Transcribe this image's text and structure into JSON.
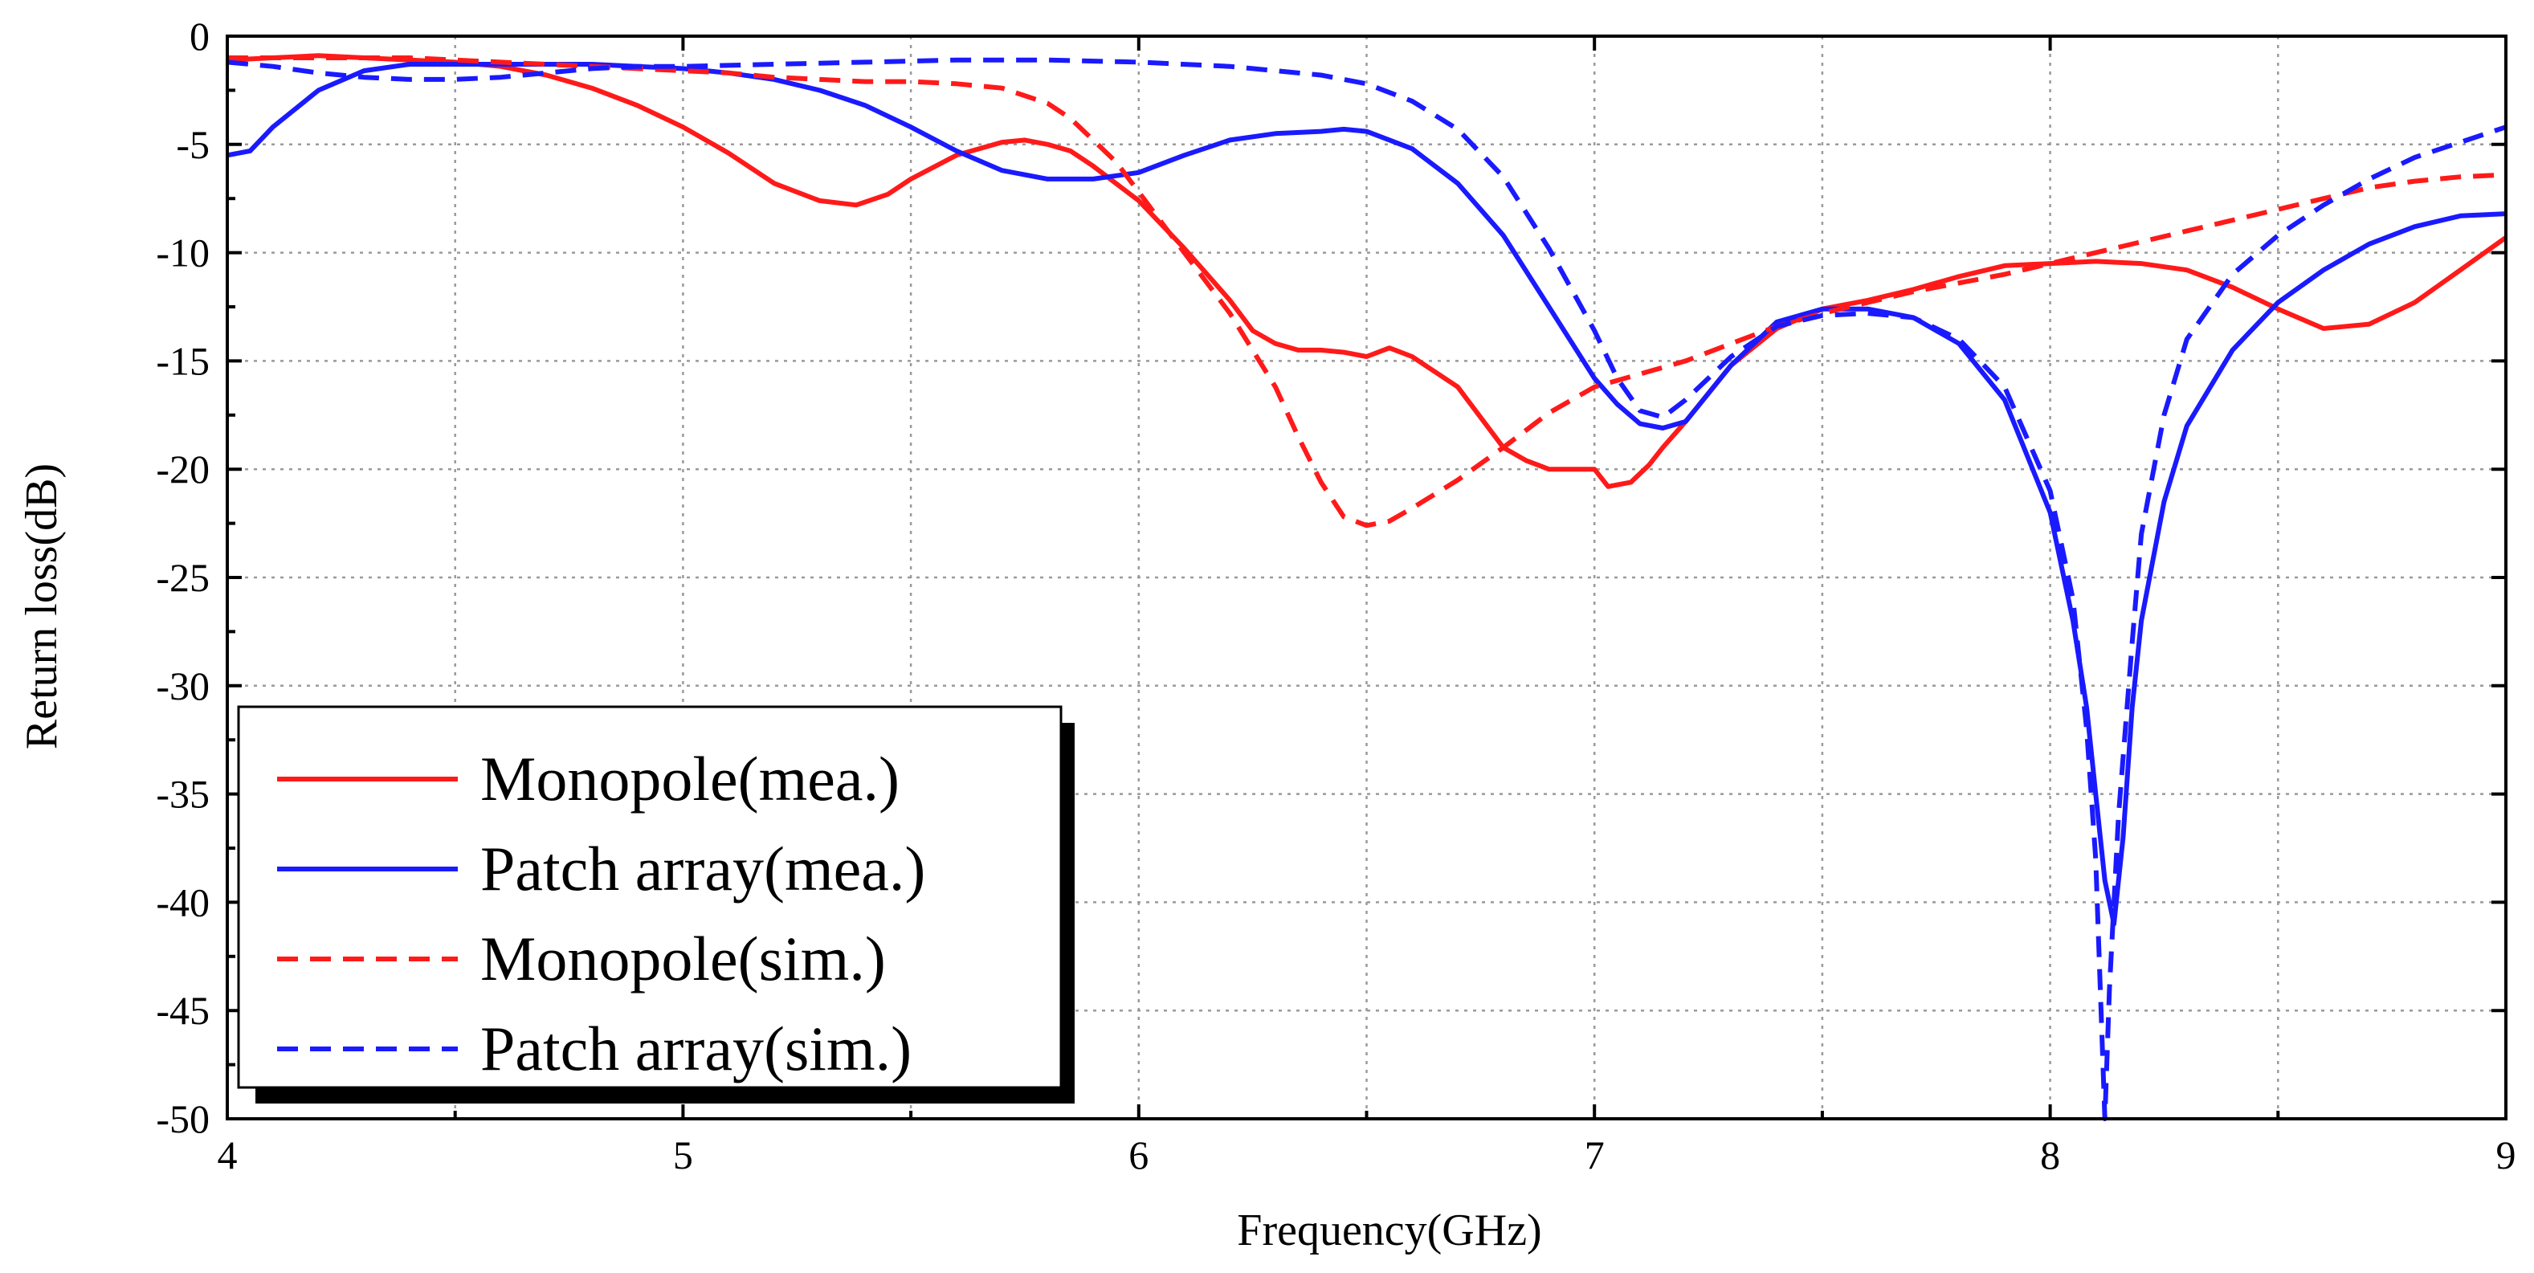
{
  "chart_data": {
    "type": "line",
    "title": "",
    "xlabel": "Frequency(GHz)",
    "ylabel": "Return loss(dB)",
    "xlim": [
      4,
      9
    ],
    "ylim": [
      -50,
      0
    ],
    "grid": true,
    "legend_position": "bottom-left",
    "x_ticks": [
      4,
      5,
      6,
      7,
      8,
      9
    ],
    "x_tick_labels": [
      "4",
      "5",
      "6",
      "7",
      "8",
      "9"
    ],
    "y_ticks": [
      0,
      -5,
      -10,
      -15,
      -20,
      -25,
      -30,
      -35,
      -40,
      -45,
      -50
    ],
    "y_tick_labels": [
      "0",
      "-5",
      "-10",
      "-15",
      "-20",
      "-25",
      "-30",
      "-35",
      "-40",
      "-45",
      "-50"
    ],
    "series": [
      {
        "name": "Monopole(mea.)",
        "color": "#ff1a1a",
        "dash": "solid",
        "x": [
          4.0,
          4.1,
          4.2,
          4.3,
          4.4,
          4.5,
          4.6,
          4.7,
          4.8,
          4.9,
          5.0,
          5.1,
          5.2,
          5.3,
          5.38,
          5.45,
          5.5,
          5.6,
          5.7,
          5.75,
          5.8,
          5.85,
          5.9,
          6.0,
          6.1,
          6.2,
          6.25,
          6.3,
          6.35,
          6.4,
          6.45,
          6.5,
          6.55,
          6.6,
          6.7,
          6.8,
          6.85,
          6.9,
          6.95,
          7.0,
          7.03,
          7.08,
          7.12,
          7.15,
          7.2,
          7.3,
          7.4,
          7.5,
          7.6,
          7.7,
          7.8,
          7.9,
          8.0,
          8.1,
          8.2,
          8.3,
          8.4,
          8.5,
          8.6,
          8.65,
          8.7,
          8.8,
          8.9,
          9.0
        ],
        "y": [
          -1.1,
          -1.0,
          -0.9,
          -1.0,
          -1.1,
          -1.2,
          -1.4,
          -1.8,
          -2.4,
          -3.2,
          -4.2,
          -5.4,
          -6.8,
          -7.6,
          -7.8,
          -7.3,
          -6.6,
          -5.5,
          -4.9,
          -4.8,
          -5.0,
          -5.3,
          -6.0,
          -7.6,
          -9.8,
          -12.2,
          -13.6,
          -14.2,
          -14.5,
          -14.5,
          -14.6,
          -14.8,
          -14.4,
          -14.8,
          -16.2,
          -19.0,
          -19.6,
          -20.0,
          -20.0,
          -20.0,
          -20.8,
          -20.6,
          -19.8,
          -19.0,
          -17.8,
          -15.2,
          -13.5,
          -12.6,
          -12.2,
          -11.7,
          -11.1,
          -10.6,
          -10.5,
          -10.4,
          -10.5,
          -10.8,
          -11.6,
          -12.6,
          -13.5,
          -13.4,
          -13.3,
          -12.3,
          -10.8,
          -9.3
        ]
      },
      {
        "name": "Patch array(mea.)",
        "color": "#1a1aff",
        "dash": "solid",
        "x": [
          4.0,
          4.05,
          4.1,
          4.2,
          4.3,
          4.4,
          4.5,
          4.6,
          4.7,
          4.8,
          4.9,
          5.0,
          5.1,
          5.2,
          5.3,
          5.4,
          5.5,
          5.6,
          5.7,
          5.8,
          5.9,
          6.0,
          6.1,
          6.2,
          6.3,
          6.4,
          6.45,
          6.5,
          6.6,
          6.7,
          6.8,
          6.9,
          7.0,
          7.05,
          7.1,
          7.15,
          7.2,
          7.3,
          7.4,
          7.5,
          7.6,
          7.7,
          7.8,
          7.9,
          8.0,
          8.05,
          8.08,
          8.1,
          8.12,
          8.14,
          8.16,
          8.18,
          8.2,
          8.25,
          8.3,
          8.4,
          8.5,
          8.6,
          8.7,
          8.8,
          8.9,
          9.0
        ],
        "y": [
          -5.5,
          -5.3,
          -4.2,
          -2.5,
          -1.6,
          -1.3,
          -1.3,
          -1.3,
          -1.3,
          -1.3,
          -1.4,
          -1.5,
          -1.7,
          -2.0,
          -2.5,
          -3.2,
          -4.2,
          -5.3,
          -6.2,
          -6.6,
          -6.6,
          -6.3,
          -5.5,
          -4.8,
          -4.5,
          -4.4,
          -4.3,
          -4.4,
          -5.2,
          -6.8,
          -9.2,
          -12.5,
          -15.8,
          -17.0,
          -17.9,
          -18.1,
          -17.8,
          -15.2,
          -13.2,
          -12.6,
          -12.6,
          -13.0,
          -14.2,
          -16.8,
          -22.0,
          -27.0,
          -31.0,
          -35.0,
          -39.0,
          -41.0,
          -37.0,
          -31.0,
          -27.0,
          -21.5,
          -18.0,
          -14.5,
          -12.3,
          -10.8,
          -9.6,
          -8.8,
          -8.3,
          -8.2
        ]
      },
      {
        "name": "Monopole(sim.)",
        "color": "#ff1a1a",
        "dash": "dashed",
        "x": [
          4.0,
          4.1,
          4.2,
          4.3,
          4.4,
          4.5,
          4.6,
          4.7,
          4.8,
          4.9,
          5.0,
          5.1,
          5.2,
          5.3,
          5.4,
          5.5,
          5.6,
          5.7,
          5.8,
          5.85,
          5.9,
          5.95,
          6.0,
          6.1,
          6.2,
          6.3,
          6.35,
          6.4,
          6.45,
          6.5,
          6.55,
          6.6,
          6.7,
          6.8,
          6.9,
          7.0,
          7.1,
          7.2,
          7.3,
          7.4,
          7.5,
          7.6,
          7.7,
          7.8,
          7.9,
          8.0,
          8.1,
          8.2,
          8.3,
          8.4,
          8.5,
          8.6,
          8.7,
          8.8,
          8.9,
          9.0
        ],
        "y": [
          -1.0,
          -1.0,
          -1.0,
          -1.0,
          -1.0,
          -1.1,
          -1.2,
          -1.3,
          -1.4,
          -1.5,
          -1.6,
          -1.7,
          -1.9,
          -2.0,
          -2.1,
          -2.1,
          -2.2,
          -2.4,
          -3.1,
          -3.8,
          -4.8,
          -5.8,
          -7.2,
          -10.0,
          -12.8,
          -16.2,
          -18.5,
          -20.6,
          -22.2,
          -22.6,
          -22.4,
          -21.8,
          -20.5,
          -19.0,
          -17.4,
          -16.2,
          -15.6,
          -15.0,
          -14.2,
          -13.4,
          -12.8,
          -12.3,
          -11.8,
          -11.4,
          -11.0,
          -10.5,
          -10.0,
          -9.5,
          -9.0,
          -8.5,
          -8.0,
          -7.5,
          -7.0,
          -6.7,
          -6.5,
          -6.4
        ]
      },
      {
        "name": "Patch array(sim.)",
        "color": "#1a1aff",
        "dash": "dashed",
        "x": [
          4.0,
          4.1,
          4.2,
          4.3,
          4.4,
          4.5,
          4.6,
          4.7,
          4.8,
          4.9,
          5.0,
          5.2,
          5.4,
          5.6,
          5.8,
          6.0,
          6.2,
          6.4,
          6.5,
          6.6,
          6.7,
          6.8,
          6.9,
          7.0,
          7.05,
          7.1,
          7.15,
          7.2,
          7.3,
          7.4,
          7.5,
          7.6,
          7.7,
          7.8,
          7.9,
          8.0,
          8.05,
          8.08,
          8.1,
          8.11,
          8.12,
          8.13,
          8.15,
          8.18,
          8.2,
          8.25,
          8.3,
          8.4,
          8.5,
          8.6,
          8.7,
          8.8,
          8.9,
          9.0
        ],
        "y": [
          -1.2,
          -1.4,
          -1.7,
          -1.9,
          -2.0,
          -2.0,
          -1.9,
          -1.7,
          -1.5,
          -1.4,
          -1.4,
          -1.3,
          -1.2,
          -1.1,
          -1.1,
          -1.2,
          -1.4,
          -1.8,
          -2.2,
          -3.0,
          -4.3,
          -6.5,
          -9.8,
          -13.6,
          -15.8,
          -17.3,
          -17.6,
          -16.8,
          -14.8,
          -13.4,
          -12.9,
          -12.8,
          -13.0,
          -14.0,
          -16.2,
          -21.0,
          -26.0,
          -32.0,
          -38.0,
          -44.0,
          -50.0,
          -44.0,
          -36.0,
          -28.0,
          -23.0,
          -17.5,
          -14.0,
          -11.0,
          -9.2,
          -7.8,
          -6.6,
          -5.6,
          -4.9,
          -4.2
        ]
      }
    ]
  }
}
